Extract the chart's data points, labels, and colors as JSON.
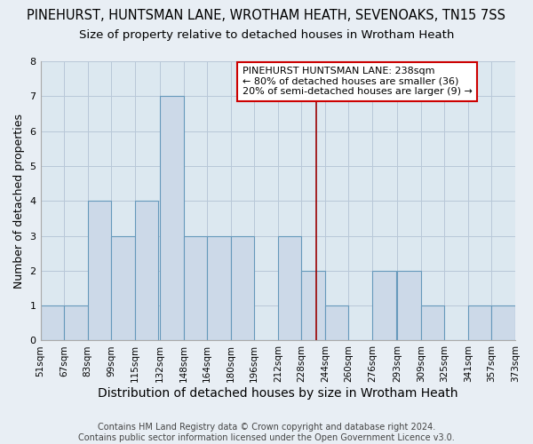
{
  "title": "PINEHURST, HUNTSMAN LANE, WROTHAM HEATH, SEVENOAKS, TN15 7SS",
  "subtitle": "Size of property relative to detached houses in Wrotham Heath",
  "xlabel": "Distribution of detached houses by size in Wrotham Heath",
  "ylabel": "Number of detached properties",
  "bin_edges": [
    51,
    67,
    83,
    99,
    115,
    132,
    148,
    164,
    180,
    196,
    212,
    228,
    244,
    260,
    276,
    293,
    309,
    325,
    341,
    357,
    373
  ],
  "counts": [
    1,
    1,
    4,
    3,
    4,
    7,
    3,
    3,
    3,
    0,
    3,
    2,
    1,
    0,
    2,
    2,
    1,
    0,
    1,
    1
  ],
  "bar_facecolor": "#ccd9e8",
  "bar_edgecolor": "#6699bb",
  "vline_x": 238,
  "vline_color": "#990000",
  "ylim": [
    0,
    8
  ],
  "yticks": [
    0,
    1,
    2,
    3,
    4,
    5,
    6,
    7,
    8
  ],
  "annotation_title": "PINEHURST HUNTSMAN LANE: 238sqm",
  "annotation_line1": "← 80% of detached houses are smaller (36)",
  "annotation_line2": "20% of semi-detached houses are larger (9) →",
  "annotation_box_edgecolor": "#cc0000",
  "footer1": "Contains HM Land Registry data © Crown copyright and database right 2024.",
  "footer2": "Contains public sector information licensed under the Open Government Licence v3.0.",
  "title_fontsize": 10.5,
  "subtitle_fontsize": 9.5,
  "xlabel_fontsize": 10,
  "ylabel_fontsize": 9,
  "tick_fontsize": 7.5,
  "annotation_fontsize": 8,
  "footer_fontsize": 7,
  "figure_bg": "#e8eef4",
  "plot_bg": "#dce8f0",
  "grid_color": "#b8c8d8"
}
